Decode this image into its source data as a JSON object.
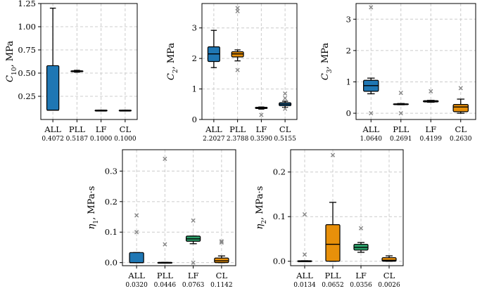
{
  "colors": {
    "blue": "#1f77b4",
    "orange": "#e8900a",
    "green": "#2ca06a",
    "median": "#000000",
    "outlier": "#888888",
    "grid": "#cccccc"
  },
  "chart_data": [
    {
      "type": "box",
      "ylabel": "C10, MPa",
      "ylabel_main": "C",
      "ylabel_sub": "10",
      "ylabel_unit": ", MPa",
      "ylim": [
        0.0,
        1.25
      ],
      "yticks": [
        0.25,
        0.5,
        0.75,
        1.0,
        1.25
      ],
      "ytick_labels": [
        "0.25",
        "0.50",
        "0.75",
        "1.00",
        "1.25"
      ],
      "categories": [
        "ALL",
        "PLL",
        "LF",
        "CL"
      ],
      "sublabels": [
        "0.4072",
        "0.5187",
        "0.1000",
        "0.1000"
      ],
      "boxes": [
        {
          "q1": 0.1,
          "median": 0.1,
          "q3": 0.58,
          "whislo": 0.1,
          "whishi": 1.2,
          "fliers": [],
          "color": "blue"
        },
        {
          "q1": 0.515,
          "median": 0.52,
          "q3": 0.525,
          "whislo": 0.51,
          "whishi": 0.53,
          "fliers": [],
          "color": "blue"
        },
        {
          "q1": 0.1,
          "median": 0.1,
          "q3": 0.1,
          "whislo": 0.1,
          "whishi": 0.1,
          "fliers": [],
          "color": "blue"
        },
        {
          "q1": 0.1,
          "median": 0.1,
          "q3": 0.1,
          "whislo": 0.1,
          "whishi": 0.1,
          "fliers": [],
          "color": "blue"
        }
      ]
    },
    {
      "type": "box",
      "ylabel": "C2, MPa",
      "ylabel_main": "C",
      "ylabel_sub": "2",
      "ylabel_unit": ", MPa",
      "ylim": [
        0.0,
        3.8
      ],
      "yticks": [
        0,
        1,
        2,
        3
      ],
      "ytick_labels": [
        "0",
        "1",
        "2",
        "3"
      ],
      "categories": [
        "ALL",
        "PLL",
        "LF",
        "CL"
      ],
      "sublabels": [
        "2.2027",
        "2.3788",
        "0.3590",
        "0.5155"
      ],
      "boxes": [
        {
          "q1": 1.9,
          "median": 2.15,
          "q3": 2.38,
          "whislo": 1.7,
          "whishi": 2.92,
          "fliers": [],
          "color": "blue"
        },
        {
          "q1": 2.05,
          "median": 2.15,
          "q3": 2.22,
          "whislo": 1.92,
          "whishi": 2.28,
          "fliers": [
            3.55,
            3.65,
            1.62
          ],
          "color": "orange"
        },
        {
          "q1": 0.36,
          "median": 0.38,
          "q3": 0.4,
          "whislo": 0.34,
          "whishi": 0.41,
          "fliers": [
            0.15
          ],
          "color": "blue"
        },
        {
          "q1": 0.45,
          "median": 0.5,
          "q3": 0.55,
          "whislo": 0.4,
          "whishi": 0.6,
          "fliers": [
            0.85,
            0.7,
            0.35
          ],
          "color": "blue"
        }
      ]
    },
    {
      "type": "box",
      "ylabel": "C3, MPa",
      "ylabel_main": "C",
      "ylabel_sub": "3",
      "ylabel_unit": ", MPa",
      "ylim": [
        -0.2,
        3.5
      ],
      "yticks": [
        0,
        1,
        2,
        3
      ],
      "ytick_labels": [
        "0",
        "1",
        "2",
        "3"
      ],
      "categories": [
        "ALL",
        "PLL",
        "LF",
        "CL"
      ],
      "sublabels": [
        "1.0640",
        "0.2691",
        "0.4199",
        "0.2630"
      ],
      "boxes": [
        {
          "q1": 0.7,
          "median": 0.88,
          "q3": 1.05,
          "whislo": 0.62,
          "whishi": 1.12,
          "fliers": [
            3.38,
            0.0
          ],
          "color": "blue"
        },
        {
          "q1": 0.28,
          "median": 0.29,
          "q3": 0.3,
          "whislo": 0.27,
          "whishi": 0.31,
          "fliers": [
            0.65,
            0.0
          ],
          "color": "blue"
        },
        {
          "q1": 0.36,
          "median": 0.38,
          "q3": 0.4,
          "whislo": 0.35,
          "whishi": 0.41,
          "fliers": [
            0.7
          ],
          "color": "blue"
        },
        {
          "q1": 0.05,
          "median": 0.2,
          "q3": 0.28,
          "whislo": 0.0,
          "whishi": 0.45,
          "fliers": [
            0.8
          ],
          "color": "orange"
        }
      ]
    },
    {
      "type": "box",
      "ylabel": "η1, MPa·s",
      "ylabel_main": "η",
      "ylabel_sub": "1",
      "ylabel_unit": ", MPa·s",
      "ylim": [
        -0.01,
        0.37
      ],
      "yticks": [
        0.0,
        0.1,
        0.2,
        0.3
      ],
      "ytick_labels": [
        "0.0",
        "0.1",
        "0.2",
        "0.3"
      ],
      "categories": [
        "ALL",
        "PLL",
        "LF",
        "CL"
      ],
      "sublabels": [
        "0.0320",
        "0.0446",
        "0.0763",
        "0.1142"
      ],
      "boxes": [
        {
          "q1": 0.0,
          "median": 0.0,
          "q3": 0.033,
          "whislo": 0.0,
          "whishi": 0.033,
          "fliers": [
            0.155,
            0.1
          ],
          "color": "blue"
        },
        {
          "q1": 0.0,
          "median": 0.0,
          "q3": 0.001,
          "whislo": 0.0,
          "whishi": 0.001,
          "fliers": [
            0.34,
            0.06
          ],
          "color": "blue"
        },
        {
          "q1": 0.07,
          "median": 0.078,
          "q3": 0.087,
          "whislo": 0.062,
          "whishi": 0.087,
          "fliers": [
            0.138,
            0.0
          ],
          "color": "green"
        },
        {
          "q1": 0.0,
          "median": 0.006,
          "q3": 0.015,
          "whislo": 0.0,
          "whishi": 0.022,
          "fliers": [
            0.07,
            0.066
          ],
          "color": "orange"
        }
      ]
    },
    {
      "type": "box",
      "ylabel": "η2, MPa·s",
      "ylabel_main": "η",
      "ylabel_sub": "2",
      "ylabel_unit": ", MPa·s",
      "ylim": [
        -0.01,
        0.25
      ],
      "yticks": [
        0.0,
        0.1,
        0.2
      ],
      "ytick_labels": [
        "0.0",
        "0.1",
        "0.2"
      ],
      "categories": [
        "ALL",
        "PLL",
        "LF",
        "CL"
      ],
      "sublabels": [
        "0.0134",
        "0.0652",
        "0.0356",
        "0.0026"
      ],
      "boxes": [
        {
          "q1": 0.0,
          "median": 0.0,
          "q3": 0.001,
          "whislo": 0.0,
          "whishi": 0.001,
          "fliers": [
            0.105,
            0.015
          ],
          "color": "blue"
        },
        {
          "q1": 0.0,
          "median": 0.038,
          "q3": 0.082,
          "whislo": 0.0,
          "whishi": 0.132,
          "fliers": [
            0.238
          ],
          "color": "orange"
        },
        {
          "q1": 0.025,
          "median": 0.031,
          "q3": 0.038,
          "whislo": 0.02,
          "whishi": 0.042,
          "fliers": [
            0.074
          ],
          "color": "green"
        },
        {
          "q1": 0.0,
          "median": 0.002,
          "q3": 0.008,
          "whislo": 0.0,
          "whishi": 0.012,
          "fliers": [],
          "color": "orange"
        }
      ]
    }
  ]
}
